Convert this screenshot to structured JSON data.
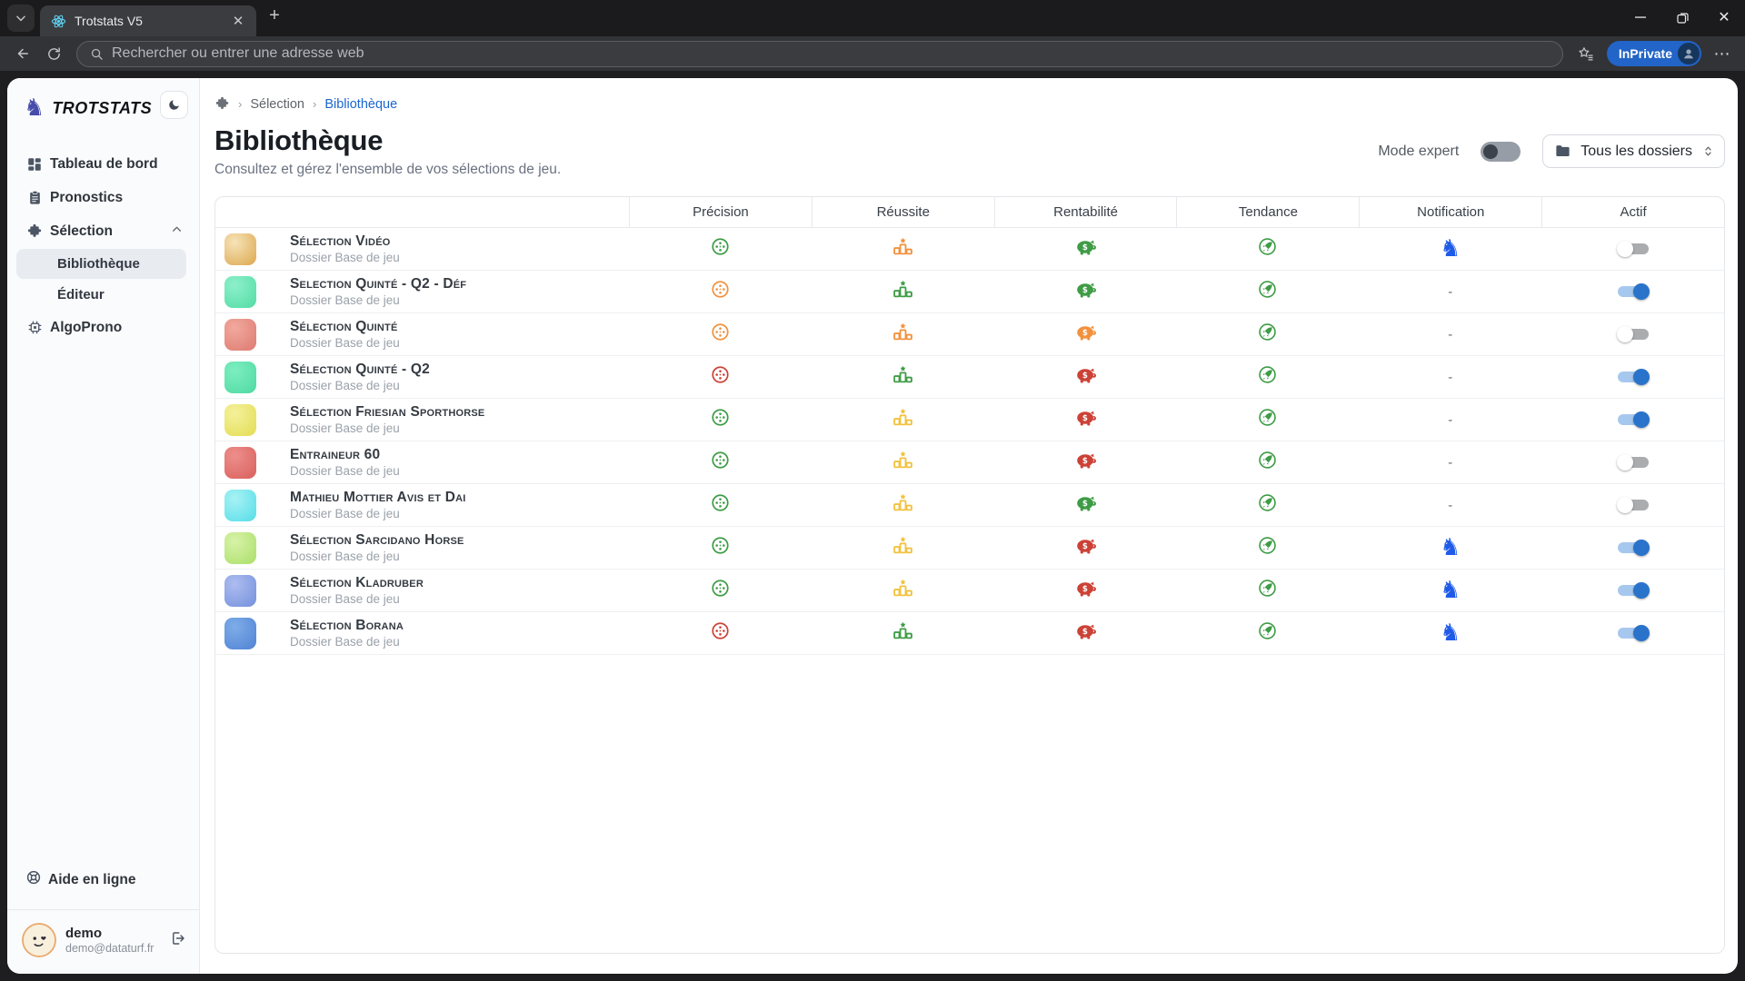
{
  "browser": {
    "tab_title": "Trotstats V5",
    "url_placeholder": "Rechercher ou entrer une adresse web",
    "inprivate_label": "InPrivate"
  },
  "sidebar": {
    "brand": "TROTSTATS",
    "nav": [
      {
        "label": "Tableau de bord",
        "icon": "dashboard-icon"
      },
      {
        "label": "Pronostics",
        "icon": "clipboard-icon"
      },
      {
        "label": "Sélection",
        "icon": "puzzle-icon",
        "expanded": true
      }
    ],
    "sub": [
      {
        "label": "Bibliothèque",
        "active": true
      },
      {
        "label": "Éditeur",
        "active": false
      }
    ],
    "algoprono_label": "AlgoProno",
    "help_label": "Aide en ligne",
    "user": {
      "name": "demo",
      "email": "demo@dataturf.fr"
    }
  },
  "main": {
    "breadcrumb": {
      "parent": "Sélection",
      "current": "Bibliothèque"
    },
    "title": "Bibliothèque",
    "subtitle": "Consultez et gérez l'ensemble de vos sélections de jeu.",
    "expert_toggle_label": "Mode expert",
    "expert_toggle_on": false,
    "folder_select_value": "Tous les dossiers",
    "table": {
      "columns": [
        "Précision",
        "Réussite",
        "Rentabilité",
        "Tendance",
        "Notification",
        "Actif"
      ],
      "rows": [
        {
          "name": "Sélection Vidéo",
          "folder": "Dossier Base de jeu",
          "thumb": [
            "#f6e3b8",
            "#dca84f"
          ],
          "precision": "green",
          "reussite": "orange",
          "rentabilite": "green",
          "tendance": "green",
          "notification": "knight",
          "actif": false
        },
        {
          "name": "Selection Quinté - Q2 - Déf",
          "folder": "Dossier Base de jeu",
          "thumb": [
            "#8ef0cb",
            "#52dca4"
          ],
          "precision": "orange",
          "reussite": "green",
          "rentabilite": "green",
          "tendance": "green",
          "notification": "dash",
          "actif": true
        },
        {
          "name": "Sélection Quinté",
          "folder": "Dossier Base de jeu",
          "thumb": [
            "#f2a99e",
            "#dd7a70"
          ],
          "precision": "orange",
          "reussite": "orange",
          "rentabilite": "orange",
          "tendance": "green",
          "notification": "dash",
          "actif": false
        },
        {
          "name": "Sélection Quinté - Q2",
          "folder": "Dossier Base de jeu",
          "thumb": [
            "#7deec0",
            "#4fd9a2"
          ],
          "precision": "red",
          "reussite": "green",
          "rentabilite": "red",
          "tendance": "green",
          "notification": "dash",
          "actif": true
        },
        {
          "name": "Sélection Friesian Sporthorse",
          "folder": "Dossier Base de jeu",
          "thumb": [
            "#f4f19a",
            "#e3dd55"
          ],
          "precision": "green",
          "reussite": "yellow",
          "rentabilite": "red",
          "tendance": "green",
          "notification": "dash",
          "actif": true
        },
        {
          "name": "Entraineur 60",
          "folder": "Dossier Base de jeu",
          "thumb": [
            "#ed8f8c",
            "#d95f5c"
          ],
          "precision": "green",
          "reussite": "yellow",
          "rentabilite": "red",
          "tendance": "green",
          "notification": "dash",
          "actif": false
        },
        {
          "name": "Mathieu Mottier Avis et Dai",
          "folder": "Dossier Base de jeu",
          "thumb": [
            "#a8f2f4",
            "#55dde8"
          ],
          "precision": "green",
          "reussite": "yellow",
          "rentabilite": "green",
          "tendance": "green",
          "notification": "dash",
          "actif": false
        },
        {
          "name": "Sélection Sarcidano Horse",
          "folder": "Dossier Base de jeu",
          "thumb": [
            "#d8f2a8",
            "#aadf6a"
          ],
          "precision": "green",
          "reussite": "yellow",
          "rentabilite": "red",
          "tendance": "green",
          "notification": "knight",
          "actif": true
        },
        {
          "name": "Sélection Kladruber",
          "folder": "Dossier Base de jeu",
          "thumb": [
            "#aebdf0",
            "#7390dc"
          ],
          "precision": "green",
          "reussite": "yellow",
          "rentabilite": "red",
          "tendance": "green",
          "notification": "knight",
          "actif": true
        },
        {
          "name": "Sélection Borana",
          "folder": "Dossier Base de jeu",
          "thumb": [
            "#7fade8",
            "#4f82d4"
          ],
          "precision": "red",
          "reussite": "green",
          "rentabilite": "red",
          "tendance": "green",
          "notification": "knight",
          "actif": true
        }
      ]
    }
  },
  "colors": {
    "green": "#3f9c46",
    "orange": "#f2913d",
    "yellow": "#f2c13d",
    "red": "#cc4237",
    "knight_blue": "#1f5be8",
    "accent_blue": "#1a66d0",
    "toggle_on_knob": "#2a73ca",
    "toggle_on_track": "#a7c8ee"
  }
}
